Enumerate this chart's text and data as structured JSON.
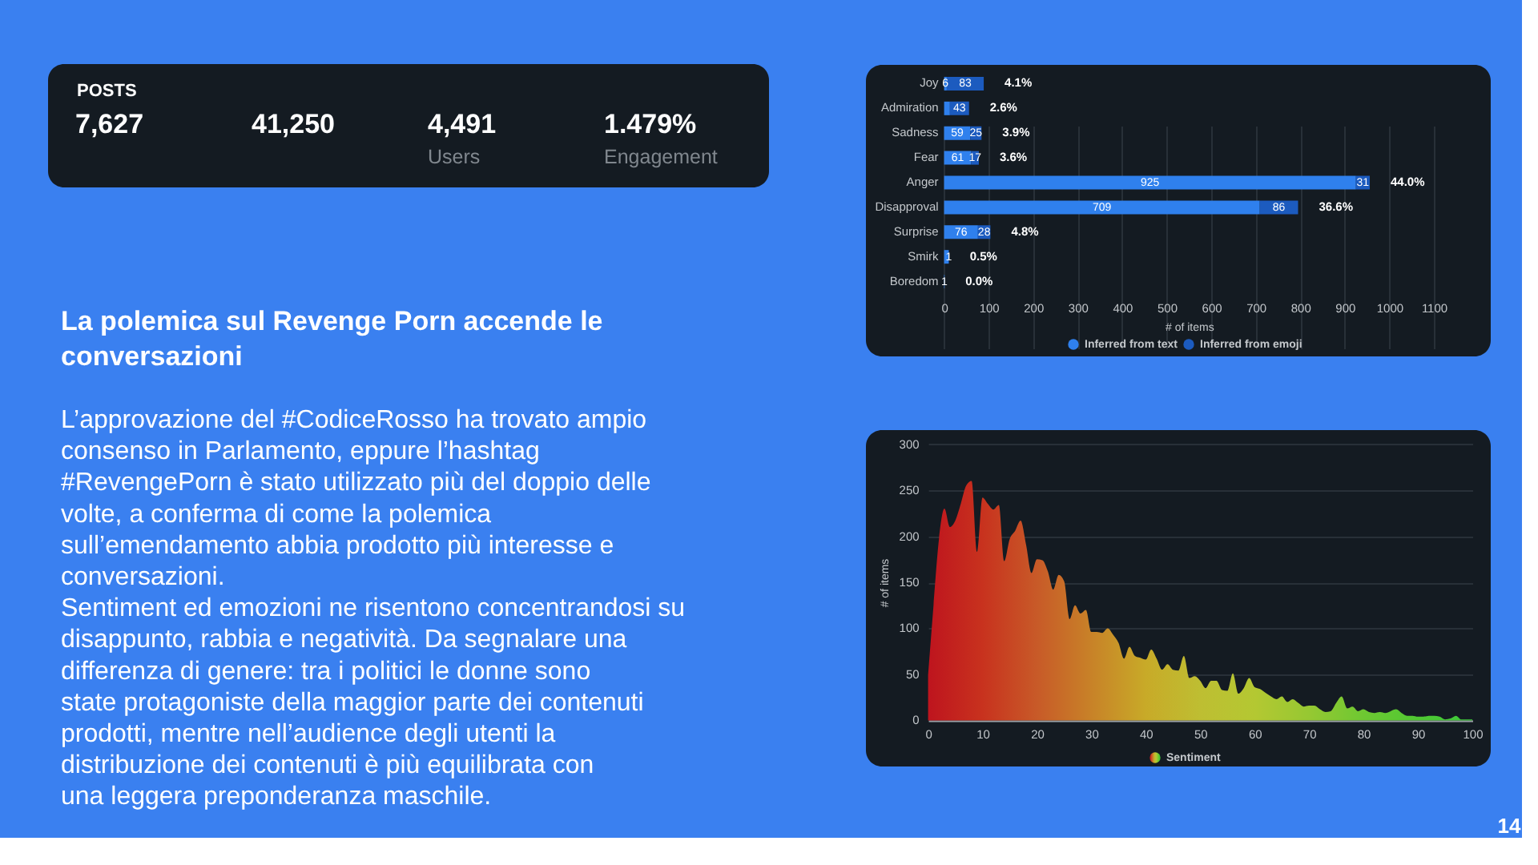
{
  "chart_data": [
    {
      "type": "other",
      "title": "POSTS",
      "categories": [
        null,
        null,
        "Users",
        "Engagement"
      ],
      "values": [
        7627,
        41250,
        4491,
        1.479
      ],
      "value_labels": [
        "7,627",
        "41,250",
        "4,491",
        "1.479%"
      ]
    },
    {
      "type": "other",
      "title": "La polemica sul Revenge Porn accende le conversazioni",
      "annotations": [
        "L’approvazione del #CodiceRosso ha trovato ampio consenso in Parlamento, eppure l’hashtag #RevengePorn è stato utilizzato più del doppio delle volte, a conferma di come la polemica sull’emendamento abbia prodotto più interesse e conversazioni.",
        "Sentiment ed emozioni ne risentono concentrandosi su disappunto, rabbia e negatività. Da segnalare una differenza di genere: tra i politici le donne sono state protagoniste della maggior parte dei contenuti prodotti, mentre nell’audience degli utenti la distribuzione dei contenuti è più equilibrata con una leggera preponderanza maschile."
      ]
    },
    {
      "type": "bar",
      "orientation": "horizontal",
      "stacked": true,
      "categories": [
        "Joy",
        "Admiration",
        "Sadness",
        "Fear",
        "Anger",
        "Disapproval",
        "Surprise",
        "Smirk",
        "Boredom"
      ],
      "series": [
        {
          "name": "Inferred from text",
          "color": "#2f80ed",
          "values": [
            6,
            13,
            59,
            61,
            925,
            709,
            76,
            10,
            1
          ],
          "value_labels": [
            "6",
            null,
            "59",
            "61",
            "925",
            "709",
            "76",
            null,
            "1"
          ]
        },
        {
          "name": "Inferred from emoji",
          "color": "#1c5bbf",
          "values": [
            83,
            43,
            25,
            17,
            31,
            86,
            28,
            1,
            null
          ],
          "value_labels": [
            "83",
            "43",
            "25",
            "17",
            "31",
            "86",
            "28",
            "1",
            null
          ]
        }
      ],
      "xlabel": "# of items",
      "xlim": [
        0,
        1100
      ],
      "xticks": [
        0,
        100,
        200,
        300,
        400,
        500,
        600,
        700,
        800,
        900,
        1000,
        1100
      ],
      "grid": "x",
      "legend": "bottom",
      "annotations": [
        {
          "text": "4.1%",
          "x": 89,
          "y": "Joy"
        },
        {
          "text": "2.6%",
          "x": 56,
          "y": "Admiration"
        },
        {
          "text": "3.9%",
          "x": 84,
          "y": "Sadness"
        },
        {
          "text": "3.6%",
          "x": 78,
          "y": "Fear"
        },
        {
          "text": "44.0%",
          "x": 956,
          "y": "Anger"
        },
        {
          "text": "36.6%",
          "x": 795,
          "y": "Disapproval"
        },
        {
          "text": "4.8%",
          "x": 104,
          "y": "Surprise"
        },
        {
          "text": "0.5%",
          "x": 11,
          "y": "Smirk"
        },
        {
          "text": "0.0%",
          "x": 1,
          "y": "Boredom"
        }
      ]
    },
    {
      "type": "area",
      "x": [
        0,
        1,
        2,
        3,
        4,
        5,
        6,
        7,
        8,
        9,
        10,
        11,
        12,
        13,
        14,
        15,
        16,
        17,
        18,
        19,
        20,
        21,
        22,
        23,
        24,
        25,
        26,
        27,
        28,
        29,
        30,
        31,
        32,
        33,
        34,
        35,
        36,
        37,
        38,
        39,
        40,
        41,
        42,
        43,
        44,
        45,
        46,
        47,
        48,
        49,
        50,
        51,
        52,
        53,
        54,
        55,
        56,
        57,
        58,
        59,
        60,
        61,
        62,
        63,
        64,
        65,
        66,
        67,
        68,
        69,
        70,
        71,
        72,
        73,
        74,
        75,
        76,
        77,
        78,
        79,
        80,
        81,
        82,
        83,
        84,
        85,
        86,
        87,
        88,
        89,
        90,
        91,
        92,
        93,
        94,
        95,
        96,
        97,
        98,
        99,
        100
      ],
      "series": [
        {
          "name": "Sentiment",
          "colors": [
            "#be141e",
            "#bf171e",
            "#c01a1e",
            "#c11d1e",
            "#c2201e",
            "#c3231e",
            "#c4261e",
            "#c5291e",
            "#c62c1e",
            "#c72f1e",
            "#c8321e",
            "#c8361f",
            "#c83a20",
            "#c83e21",
            "#c84222",
            "#c84623",
            "#c84a24",
            "#c84e25",
            "#c85226",
            "#c85627",
            "#c85a28",
            "#c85e28",
            "#c86228",
            "#c86628",
            "#c86a28",
            "#c86e28",
            "#c87228",
            "#c87628",
            "#c87a28",
            "#c87e28",
            "#c88228",
            "#c88628",
            "#c88a28",
            "#c88e28",
            "#c89228",
            "#c89628",
            "#c89a28",
            "#c89e28",
            "#c8a228",
            "#c8a628",
            "#c8aa28",
            "#c7ac29",
            "#c6ae2a",
            "#c5b02b",
            "#c4b22c",
            "#c3b42d",
            "#c2b62e",
            "#c1b82f",
            "#c0ba30",
            "#bfbc31",
            "#bebe32",
            "#bdbf32",
            "#bcc032",
            "#bbc132",
            "#bac232",
            "#b9c332",
            "#b8c432",
            "#b7c532",
            "#b6c632",
            "#b5c732",
            "#b4c832",
            "#b1c832",
            "#aec832",
            "#abc832",
            "#a8c832",
            "#a5c832",
            "#a2c832",
            "#9fc832",
            "#9cc832",
            "#99c832",
            "#96c832",
            "#92c832",
            "#8ec832",
            "#8ac832",
            "#86c832",
            "#82c832",
            "#7ec832",
            "#7ac832",
            "#76c832",
            "#72c832",
            "#6ec832",
            "#6bc832",
            "#68c832",
            "#65c832",
            "#62c832",
            "#5fc832",
            "#5cc832",
            "#59c832",
            "#56c832",
            "#53c832",
            "#50c832",
            "#4ec833",
            "#4cc834",
            "#4ac835",
            "#48c836",
            "#46c837",
            "#44c838",
            "#42c839",
            "#40c83a",
            "#3ec83b",
            "#3cc83c"
          ],
          "values": [
            49,
            125,
            197,
            230,
            210,
            217,
            235,
            255,
            260,
            183,
            242,
            235,
            229,
            234,
            173,
            197,
            206,
            217,
            191,
            160,
            175,
            174,
            162,
            142,
            158,
            151,
            110,
            125,
            116,
            120,
            96,
            96,
            95,
            100,
            93,
            84,
            67,
            80,
            70,
            68,
            66,
            77,
            67,
            55,
            61,
            55,
            54,
            70,
            46,
            48,
            43,
            35,
            43,
            43,
            33,
            32,
            51,
            29,
            35,
            46,
            36,
            34,
            30,
            26,
            23,
            26,
            20,
            23,
            19,
            15,
            16,
            16,
            12,
            9,
            10,
            19,
            26,
            13,
            15,
            10,
            12,
            9,
            8,
            9,
            8,
            10,
            12,
            8,
            5,
            5,
            4,
            4,
            5,
            5,
            4,
            1,
            2,
            5,
            1,
            1,
            1
          ]
        }
      ],
      "ylabel": "# of items",
      "xlim": [
        0,
        100
      ],
      "xticks": [
        0,
        10,
        20,
        30,
        40,
        50,
        60,
        70,
        80,
        90,
        100
      ],
      "ylim": [
        0,
        300
      ],
      "yticks": [
        0,
        50,
        100,
        150,
        200,
        250,
        300
      ],
      "grid": "y",
      "legend": "bottom",
      "annotations": [
        "14"
      ]
    }
  ]
}
